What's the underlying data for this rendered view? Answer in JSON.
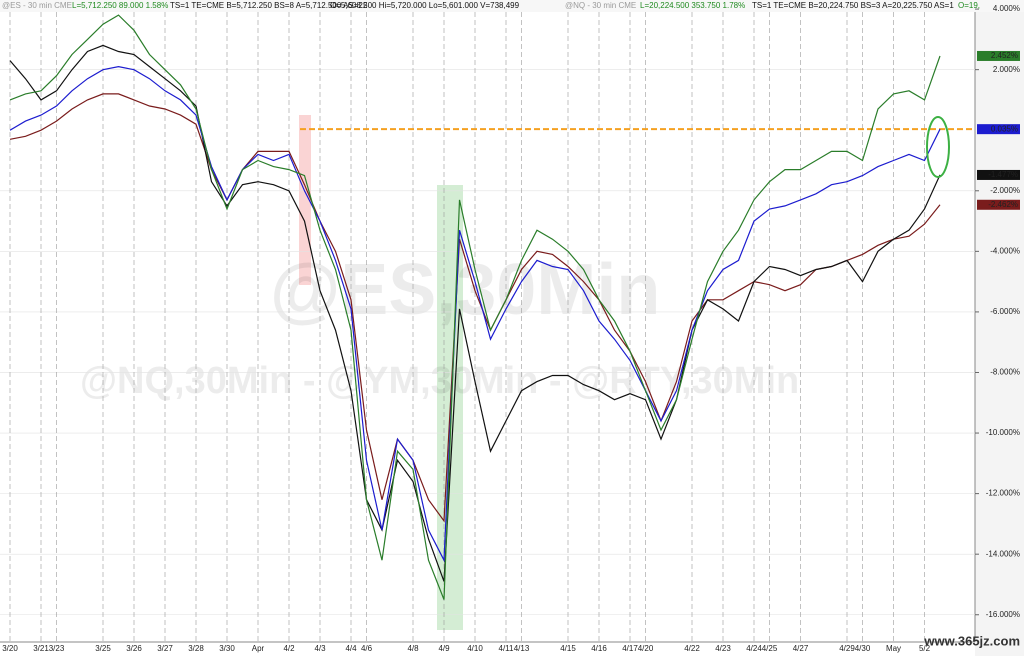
{
  "chart_data": {
    "type": "line",
    "header": [
      {
        "text": "@ES - 30 min CME",
        "color": "#9a9a9a"
      },
      {
        "text": "L=5,712.250  89.000  1.58%",
        "color": "#1f8a1f"
      },
      {
        "text": "TS=1  TE=CME  B=5,712.250  BS=8  A=5,712.500  AS=22",
        "color": "#111111"
      },
      {
        "text": "O=5,608.500  Hi=5,720.000  Lo=5,601.000  V=738,499",
        "color": "#111111"
      },
      {
        "text": "@NQ - 30 min CME",
        "color": "#9a9a9a"
      },
      {
        "text": "L=20,224.500  353.750  1.78%",
        "color": "#1f8a1f"
      },
      {
        "text": "TS=1  TE=CME  B=20,224.750  BS=3  A=20,225.750  AS=1",
        "color": "#111111"
      },
      {
        "text": "O=19,",
        "color": "#1f8a1f"
      }
    ],
    "watermark": [
      "@ES,30Min",
      "@NQ,30Min - @YM,30Min - @RTY,30Min"
    ],
    "footer_watermark": "www.365jz.com",
    "categories": [
      "3/20",
      null,
      "3/21",
      "3/23",
      null,
      null,
      "3/25",
      null,
      "3/26",
      null,
      "3/27",
      null,
      "3/28",
      null,
      "3/30",
      null,
      "Apr",
      null,
      "4/2",
      null,
      "4/3",
      null,
      "4/4",
      "4/6",
      null,
      null,
      "4/8",
      null,
      "4/9",
      null,
      "4/10",
      null,
      "4/11",
      "4/13",
      null,
      null,
      "4/15",
      null,
      "4/16",
      null,
      "4/17",
      "4/20",
      null,
      null,
      "4/22",
      null,
      "4/23",
      null,
      "4/24",
      "4/25",
      null,
      "4/27",
      null,
      null,
      "4/29",
      "4/30",
      null,
      "May",
      null,
      "5/2",
      null
    ],
    "series": [
      {
        "color": "#7a1c1c",
        "values": [
          -0.3,
          -0.2,
          0,
          0.3,
          0.7,
          1.0,
          1.2,
          1.2,
          1.0,
          0.8,
          0.7,
          0.5,
          0.2,
          -1.3,
          -2.3,
          -1.3,
          -0.7,
          -0.7,
          -0.7,
          -1.8,
          -3.0,
          -4.0,
          -5.6,
          -9.9,
          -12.2,
          -10.2,
          -10.9,
          -12.2,
          -12.9,
          -3.6,
          -5.3,
          -6.6,
          -5.6,
          -4.6,
          -4.0,
          -4.1,
          -4.5,
          -5.0,
          -5.6,
          -6.6,
          -7.3,
          -8.3,
          -9.6,
          -8.3,
          -6.3,
          -5.6,
          -5.6,
          -5.3,
          -5.0,
          -5.1,
          -5.3,
          -5.1,
          -4.6,
          -4.5,
          -4.3,
          -4.1,
          -3.8,
          -3.6,
          -3.5,
          -3.1,
          -2.462
        ],
        "value_labels": [
          null,
          null,
          null,
          null,
          null,
          null,
          null,
          null,
          null,
          null,
          null,
          null,
          null,
          null,
          null,
          null,
          null,
          null,
          null,
          null,
          null,
          null,
          null,
          null,
          null,
          null,
          null,
          null,
          null,
          null,
          null,
          null,
          null,
          null,
          null,
          null,
          null,
          null,
          null,
          null,
          null,
          null,
          null,
          null,
          null,
          null,
          null,
          null,
          null,
          null,
          null,
          null,
          null,
          null,
          null,
          null,
          null,
          null,
          null,
          null,
          "-2.462%"
        ]
      },
      {
        "color": "#111111",
        "values": [
          2.3,
          1.7,
          1.0,
          1.3,
          2.0,
          2.6,
          2.8,
          2.6,
          2.5,
          2.1,
          1.7,
          1.3,
          0.8,
          -1.7,
          -2.5,
          -1.8,
          -1.7,
          -1.8,
          -2.0,
          -3.0,
          -5.3,
          -6.6,
          -8.6,
          -12.2,
          -13.2,
          -10.9,
          -11.6,
          -13.5,
          -14.9,
          -5.9,
          -8.3,
          -10.6,
          -9.6,
          -8.6,
          -8.3,
          -8.1,
          -8.1,
          -8.4,
          -8.6,
          -8.9,
          -8.7,
          -8.9,
          -10.2,
          -8.9,
          -6.6,
          -5.6,
          -5.9,
          -6.3,
          -5.0,
          -4.5,
          -4.6,
          -4.8,
          -4.6,
          -4.5,
          -4.3,
          -5.0,
          -4.0,
          -3.6,
          -3.3,
          -2.6,
          -1.477
        ],
        "value_labels": [
          null,
          null,
          null,
          null,
          null,
          null,
          null,
          null,
          null,
          null,
          null,
          null,
          null,
          null,
          null,
          null,
          null,
          null,
          null,
          null,
          null,
          null,
          null,
          null,
          null,
          null,
          null,
          null,
          null,
          null,
          null,
          null,
          null,
          null,
          null,
          null,
          null,
          null,
          null,
          null,
          null,
          null,
          null,
          null,
          null,
          null,
          null,
          null,
          null,
          null,
          null,
          null,
          null,
          null,
          null,
          null,
          null,
          null,
          null,
          null,
          "-1.477%"
        ]
      },
      {
        "color": "#1c1ccf",
        "values": [
          0,
          0.3,
          0.5,
          0.8,
          1.3,
          1.7,
          2.0,
          2.1,
          2.0,
          1.7,
          1.3,
          1.0,
          0.5,
          -1.2,
          -2.3,
          -1.3,
          -0.8,
          -1.0,
          -0.8,
          -2.0,
          -3.0,
          -4.3,
          -5.9,
          -10.9,
          -13.2,
          -10.2,
          -10.9,
          -13.2,
          -14.2,
          -3.3,
          -5.0,
          -6.9,
          -5.9,
          -5.0,
          -4.3,
          -4.5,
          -4.6,
          -5.3,
          -6.3,
          -6.9,
          -7.6,
          -8.6,
          -9.6,
          -8.6,
          -6.6,
          -5.3,
          -4.6,
          -4.3,
          -3.0,
          -2.6,
          -2.5,
          -2.3,
          -2.1,
          -1.8,
          -1.7,
          -1.5,
          -1.2,
          -1.0,
          -0.8,
          -1.0,
          0.035
        ],
        "value_labels": [
          null,
          null,
          null,
          null,
          null,
          null,
          null,
          null,
          null,
          null,
          null,
          null,
          null,
          null,
          null,
          null,
          null,
          null,
          null,
          null,
          null,
          null,
          null,
          null,
          null,
          null,
          null,
          null,
          null,
          null,
          null,
          null,
          null,
          null,
          null,
          null,
          null,
          null,
          null,
          null,
          null,
          null,
          null,
          null,
          null,
          null,
          null,
          null,
          null,
          null,
          null,
          null,
          null,
          null,
          null,
          null,
          null,
          null,
          null,
          null,
          "0.035%"
        ]
      },
      {
        "color": "#2a7d2a",
        "values": [
          1.0,
          1.2,
          1.3,
          1.8,
          2.5,
          3.0,
          3.5,
          3.8,
          3.3,
          2.5,
          2.0,
          1.5,
          0.7,
          -1.3,
          -2.6,
          -1.3,
          -1.0,
          -1.2,
          -1.3,
          -1.5,
          -3.3,
          -4.6,
          -6.6,
          -12.2,
          -14.2,
          -10.6,
          -11.2,
          -14.2,
          -15.5,
          -2.3,
          -4.6,
          -6.6,
          -5.6,
          -4.3,
          -3.3,
          -3.6,
          -4.0,
          -4.6,
          -5.6,
          -6.3,
          -7.3,
          -8.6,
          -9.9,
          -8.9,
          -6.9,
          -5.0,
          -4.0,
          -3.3,
          -2.3,
          -1.7,
          -1.3,
          -1.3,
          -1.0,
          -0.7,
          -0.7,
          -1.0,
          0.7,
          1.2,
          1.3,
          1.0,
          2.452
        ],
        "value_labels": [
          null,
          null,
          null,
          null,
          null,
          null,
          null,
          null,
          null,
          null,
          null,
          null,
          null,
          null,
          null,
          null,
          null,
          null,
          null,
          null,
          null,
          null,
          null,
          null,
          null,
          null,
          null,
          null,
          null,
          null,
          null,
          null,
          null,
          null,
          null,
          null,
          null,
          null,
          null,
          null,
          null,
          null,
          null,
          null,
          null,
          null,
          null,
          null,
          null,
          null,
          null,
          null,
          null,
          null,
          null,
          null,
          null,
          null,
          null,
          null,
          "2.452%"
        ]
      }
    ],
    "reference_line": {
      "value": 0.035,
      "color": "#f5a020"
    },
    "ylim": [
      -16.9,
      4.3
    ],
    "yticks": [
      {
        "value": 4,
        "label": "4.000%"
      },
      {
        "value": 2,
        "label": "2.000%"
      },
      {
        "value": -2,
        "label": "-2.000%"
      },
      {
        "value": -4,
        "label": "-4.000%"
      },
      {
        "value": -6,
        "label": "-6.000%"
      },
      {
        "value": -8,
        "label": "-8.000%"
      },
      {
        "value": -10,
        "label": "-10.000%"
      },
      {
        "value": -12,
        "label": "-12.000%"
      },
      {
        "value": -14,
        "label": "-14.000%"
      },
      {
        "value": -16,
        "label": "-16.000%"
      }
    ],
    "grid": true
  }
}
